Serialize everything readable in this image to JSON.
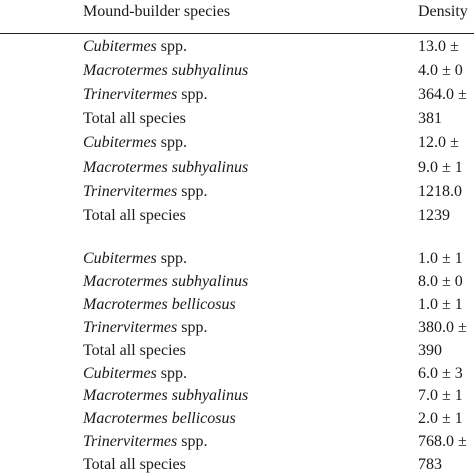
{
  "table": {
    "header": [
      "Mound-builder species",
      "Density"
    ],
    "groups": [
      {
        "rows": [
          {
            "species": "Cubitermes",
            "qualifier": "spp.",
            "density": "13.0 ±"
          },
          {
            "species": "Macrotermes subhyalinus",
            "density": "4.0 ± 0"
          },
          {
            "species": "Trinervitermes",
            "qualifier": "spp.",
            "density": "364.0 ±"
          },
          {
            "label": "Total all species",
            "density": "381"
          },
          {
            "species": "Cubitermes",
            "qualifier": "spp.",
            "density": "12.0 ±"
          },
          {
            "species": "Macrotermes subhyalinus",
            "density": "9.0 ± 1"
          },
          {
            "species": "Trinervitermes",
            "qualifier": "spp.",
            "density": "1218.0"
          },
          {
            "label": "Total all species",
            "density": "1239"
          }
        ]
      },
      {
        "rows": [
          {
            "species": "Cubitermes",
            "qualifier": "spp.",
            "density": "1.0 ± 1"
          },
          {
            "species": "Macrotermes subhyalinus",
            "density": "8.0 ± 0"
          },
          {
            "species": "Macrotermes bellicosus",
            "density": "1.0 ± 1"
          },
          {
            "species": "Trinervitermes",
            "qualifier": "spp.",
            "density": "380.0 ±"
          },
          {
            "label": "Total all species",
            "density": "390"
          },
          {
            "species": "Cubitermes",
            "qualifier": "spp.",
            "density": "6.0 ± 3"
          },
          {
            "species": "Macrotermes subhyalinus",
            "density": "7.0 ± 1"
          },
          {
            "species": "Macrotermes bellicosus",
            "density": "2.0 ± 1"
          },
          {
            "species": "Trinervitermes",
            "qualifier": "spp.",
            "density": "768.0 ±"
          },
          {
            "label": "Total all species",
            "density": "783"
          }
        ]
      }
    ]
  }
}
